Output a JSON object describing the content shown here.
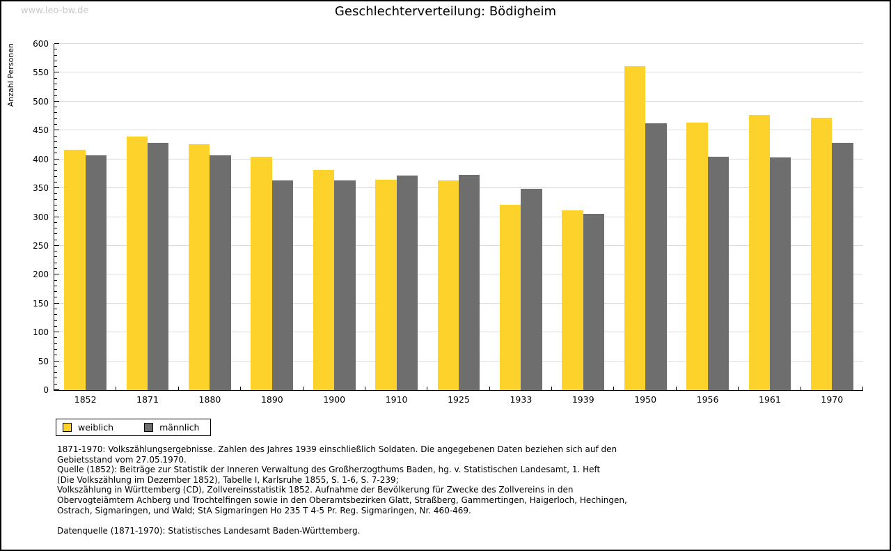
{
  "page": {
    "watermark": "www.leo-bw.de",
    "title": "Geschlechterverteilung: Bödigheim"
  },
  "chart_data": {
    "type": "bar",
    "title": "Geschlechterverteilung: Bödigheim",
    "xlabel": "",
    "ylabel": "Anzahl Personen",
    "ylim": [
      0,
      600
    ],
    "ytick_step": 50,
    "ytick_minor_step": 10,
    "grid": true,
    "legend_position": "bottom-left",
    "categories": [
      "1852",
      "1871",
      "1880",
      "1890",
      "1900",
      "1910",
      "1925",
      "1933",
      "1939",
      "1950",
      "1956",
      "1961",
      "1970"
    ],
    "series": [
      {
        "name": "weiblich",
        "color": "#fcd22b",
        "values": [
          416,
          440,
          426,
          405,
          381,
          365,
          363,
          321,
          312,
          561,
          463,
          477,
          472
        ]
      },
      {
        "name": "männlich",
        "color": "#6e6e6e",
        "values": [
          407,
          428,
          407,
          364,
          364,
          372,
          373,
          349,
          305,
          462,
          404,
          403,
          428
        ]
      }
    ]
  },
  "footnotes": {
    "lines": [
      "1871-1970: Volkszählungsergebnisse. Zahlen des Jahres 1939 einschließlich Soldaten. Die angegebenen Daten beziehen sich auf den",
      "Gebietsstand vom 27.05.1970.",
      "Quelle (1852): Beiträge zur Statistik der Inneren Verwaltung des Großherzogthums Baden, hg. v. Statistischen Landesamt, 1. Heft",
      "(Die Volkszählung im Dezember 1852), Tabelle I, Karlsruhe 1855, S. 1-6, S. 7-239;",
      "Volkszählung in Württemberg (CD), Zollvereinsstatistik 1852. Aufnahme der Bevölkerung für Zwecke des Zollvereins in den",
      "Obervogteiämtern Achberg und Trochtelfingen sowie in den Oberamtsbezirken Glatt, Straßberg, Gammertingen, Haigerloch, Hechingen,",
      "Ostrach, Sigmaringen, und Wald; StA Sigmaringen Ho 235 T 4-5 Pr. Reg. Sigmaringen, Nr. 460-469."
    ],
    "datasource": "Datenquelle (1871-1970): Statistisches Landesamt Baden-Württemberg."
  },
  "colors": {
    "female": "#fcd22b",
    "male": "#6e6e6e",
    "gridline": "#dcdcdc",
    "axis": "#000000",
    "watermark": "#c9c9c9",
    "border": "#000000"
  }
}
